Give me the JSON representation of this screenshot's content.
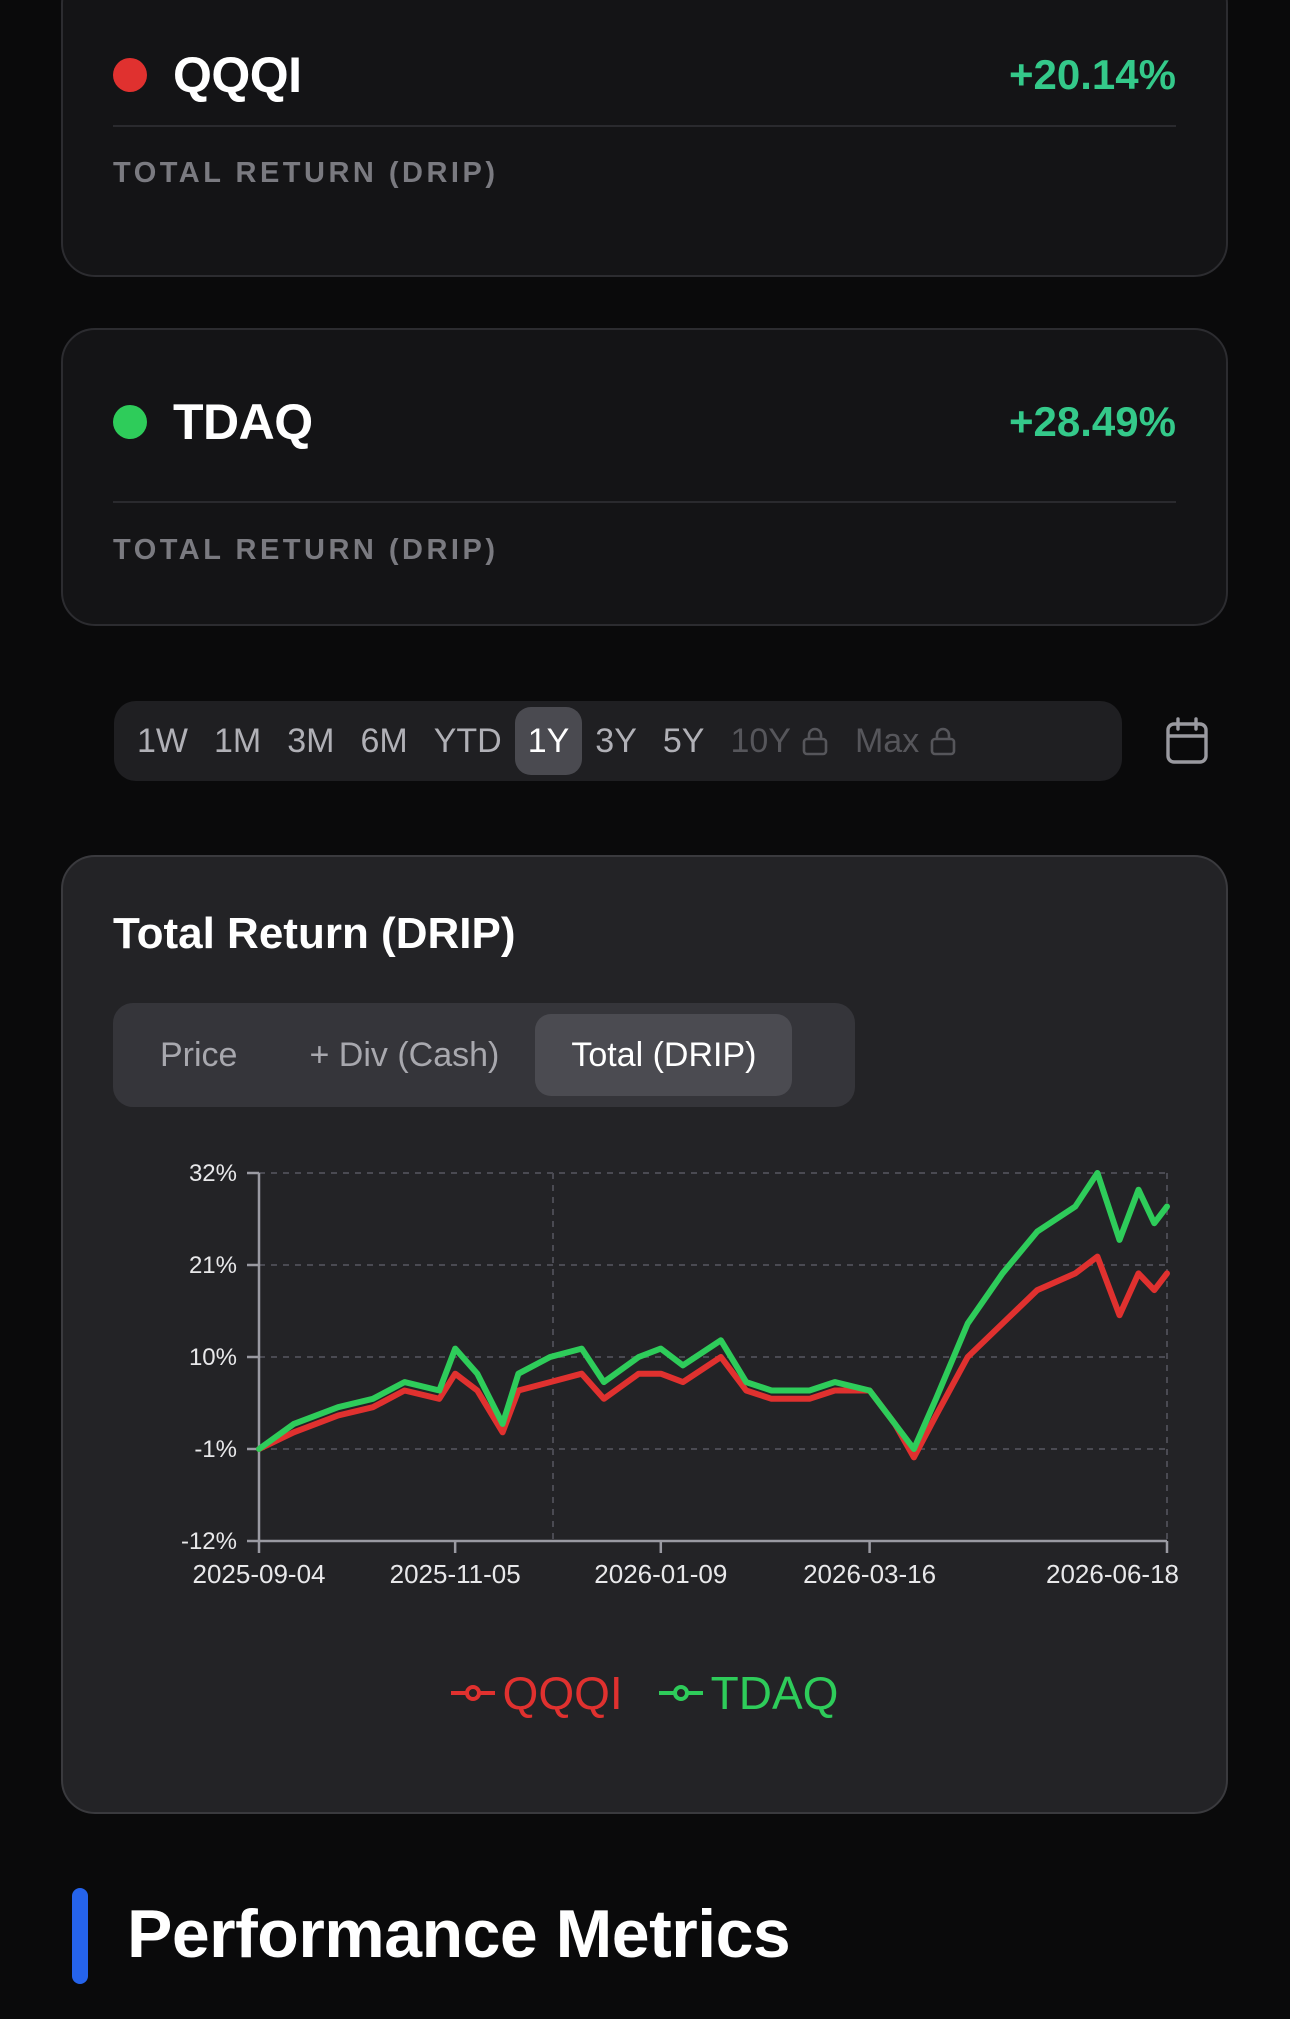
{
  "cards": [
    {
      "ticker": "QQQI",
      "change": "+20.14%",
      "label": "TOTAL RETURN (DRIP)",
      "dot_color": "#e0312f"
    },
    {
      "ticker": "TDAQ",
      "change": "+28.49%",
      "label": "TOTAL RETURN (DRIP)",
      "dot_color": "#2ecc5a"
    }
  ],
  "ranges": [
    {
      "label": "1W",
      "active": false,
      "locked": false
    },
    {
      "label": "1M",
      "active": false,
      "locked": false
    },
    {
      "label": "3M",
      "active": false,
      "locked": false
    },
    {
      "label": "6M",
      "active": false,
      "locked": false
    },
    {
      "label": "YTD",
      "active": false,
      "locked": false
    },
    {
      "label": "1Y",
      "active": true,
      "locked": false
    },
    {
      "label": "3Y",
      "active": false,
      "locked": false
    },
    {
      "label": "5Y",
      "active": false,
      "locked": false
    },
    {
      "label": "10Y",
      "active": false,
      "locked": true
    },
    {
      "label": "Max",
      "active": false,
      "locked": true
    }
  ],
  "chart_card": {
    "title": "Total Return (DRIP)",
    "modes": [
      {
        "label": "Price",
        "active": false
      },
      {
        "label": "+ Div (Cash)",
        "active": false
      },
      {
        "label": "Total (DRIP)",
        "active": true
      }
    ]
  },
  "chart_data": {
    "type": "line",
    "ylim": [
      -12,
      32
    ],
    "yticks": [
      "32%",
      "21%",
      "10%",
      "-1%",
      "-12%"
    ],
    "xticks": [
      "2025-09-04",
      "2025-11-05",
      "2026-01-09",
      "2026-03-16",
      "2026-06-18"
    ],
    "grid": true,
    "legend_position": "bottom",
    "series": [
      {
        "name": "QQQI",
        "color": "#e0312f",
        "x": [
          "2025-09-04",
          "2025-09-15",
          "2025-09-29",
          "2025-10-10",
          "2025-10-20",
          "2025-10-31",
          "2025-11-05",
          "2025-11-12",
          "2025-11-20",
          "2025-11-25",
          "2025-12-05",
          "2025-12-15",
          "2025-12-22",
          "2026-01-02",
          "2026-01-09",
          "2026-01-16",
          "2026-01-28",
          "2026-02-05",
          "2026-02-13",
          "2026-02-25",
          "2026-03-05",
          "2026-03-16",
          "2026-03-24",
          "2026-03-30",
          "2026-04-06",
          "2026-04-16",
          "2026-04-27",
          "2026-05-08",
          "2026-05-20",
          "2026-05-27",
          "2026-06-03",
          "2026-06-09",
          "2026-06-14",
          "2026-06-18"
        ],
        "y": [
          -1,
          1,
          3,
          4,
          6,
          5,
          8,
          6,
          1,
          6,
          7,
          8,
          5,
          8,
          8,
          7,
          10,
          6,
          5,
          5,
          6,
          6,
          2,
          -2,
          3,
          10,
          14,
          18,
          20,
          22,
          15,
          20,
          18,
          20
        ]
      },
      {
        "name": "TDAQ",
        "color": "#2ecc5a",
        "x": [
          "2025-09-04",
          "2025-09-15",
          "2025-09-29",
          "2025-10-10",
          "2025-10-20",
          "2025-10-31",
          "2025-11-05",
          "2025-11-12",
          "2025-11-20",
          "2025-11-25",
          "2025-12-05",
          "2025-12-15",
          "2025-12-22",
          "2026-01-02",
          "2026-01-09",
          "2026-01-16",
          "2026-01-28",
          "2026-02-05",
          "2026-02-13",
          "2026-02-25",
          "2026-03-05",
          "2026-03-16",
          "2026-03-24",
          "2026-03-30",
          "2026-04-06",
          "2026-04-16",
          "2026-04-27",
          "2026-05-08",
          "2026-05-20",
          "2026-05-27",
          "2026-06-03",
          "2026-06-09",
          "2026-06-14",
          "2026-06-18"
        ],
        "y": [
          -1,
          2,
          4,
          5,
          7,
          6,
          11,
          8,
          2,
          8,
          10,
          11,
          7,
          10,
          11,
          9,
          12,
          7,
          6,
          6,
          7,
          6,
          2,
          -1,
          5,
          14,
          20,
          25,
          28,
          32,
          24,
          30,
          26,
          28
        ]
      }
    ]
  },
  "section_title": "Performance Metrics"
}
